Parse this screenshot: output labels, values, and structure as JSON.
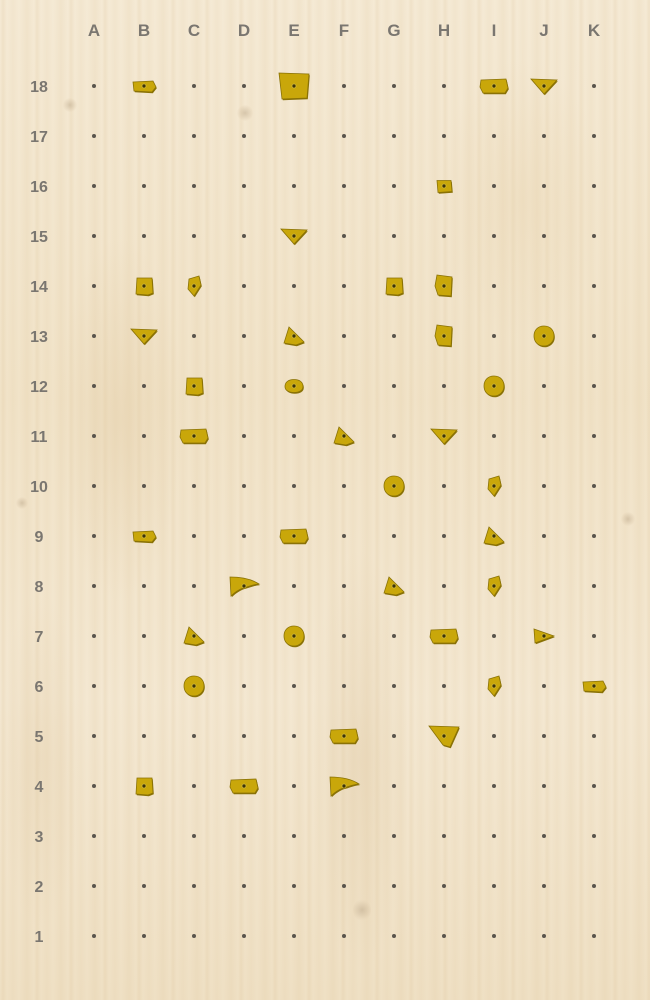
{
  "board": {
    "columns": [
      "A",
      "B",
      "C",
      "D",
      "E",
      "F",
      "G",
      "H",
      "I",
      "J",
      "K"
    ],
    "rows": [
      "18",
      "17",
      "16",
      "15",
      "14",
      "13",
      "12",
      "11",
      "10",
      "9",
      "8",
      "7",
      "6",
      "5",
      "4",
      "3",
      "2",
      "1"
    ],
    "hold_color": "#c9a70a",
    "hold_shadow": "#8a7206",
    "label_color": "#7a7670",
    "hole_color": "#5a554d"
  },
  "holds": [
    {
      "pos": "B18",
      "shape": "flat"
    },
    {
      "pos": "E18",
      "shape": "big-square"
    },
    {
      "pos": "I18",
      "shape": "wide"
    },
    {
      "pos": "J18",
      "shape": "triangle-down"
    },
    {
      "pos": "H16",
      "shape": "small-square"
    },
    {
      "pos": "E15",
      "shape": "triangle-down"
    },
    {
      "pos": "B14",
      "shape": "square"
    },
    {
      "pos": "C14",
      "shape": "crimp"
    },
    {
      "pos": "G14",
      "shape": "square"
    },
    {
      "pos": "H14",
      "shape": "pinch"
    },
    {
      "pos": "B13",
      "shape": "triangle-down"
    },
    {
      "pos": "E13",
      "shape": "triangle-up"
    },
    {
      "pos": "H13",
      "shape": "pinch"
    },
    {
      "pos": "J13",
      "shape": "round"
    },
    {
      "pos": "C12",
      "shape": "square"
    },
    {
      "pos": "E12",
      "shape": "oval"
    },
    {
      "pos": "I12",
      "shape": "round"
    },
    {
      "pos": "C11",
      "shape": "wide"
    },
    {
      "pos": "F11",
      "shape": "triangle-up"
    },
    {
      "pos": "H11",
      "shape": "triangle-down"
    },
    {
      "pos": "G10",
      "shape": "round"
    },
    {
      "pos": "I10",
      "shape": "crimp"
    },
    {
      "pos": "B9",
      "shape": "flat"
    },
    {
      "pos": "E9",
      "shape": "wide"
    },
    {
      "pos": "I9",
      "shape": "triangle-up"
    },
    {
      "pos": "D8",
      "shape": "sloper"
    },
    {
      "pos": "G8",
      "shape": "triangle-up"
    },
    {
      "pos": "I8",
      "shape": "crimp"
    },
    {
      "pos": "C7",
      "shape": "triangle-up"
    },
    {
      "pos": "E7",
      "shape": "round"
    },
    {
      "pos": "H7",
      "shape": "wide"
    },
    {
      "pos": "J7",
      "shape": "triangle-right"
    },
    {
      "pos": "C6",
      "shape": "round"
    },
    {
      "pos": "I6",
      "shape": "crimp"
    },
    {
      "pos": "K6",
      "shape": "flat"
    },
    {
      "pos": "F5",
      "shape": "wide"
    },
    {
      "pos": "H5",
      "shape": "big-triangle"
    },
    {
      "pos": "B4",
      "shape": "square"
    },
    {
      "pos": "D4",
      "shape": "wide"
    },
    {
      "pos": "F4",
      "shape": "sloper"
    }
  ]
}
